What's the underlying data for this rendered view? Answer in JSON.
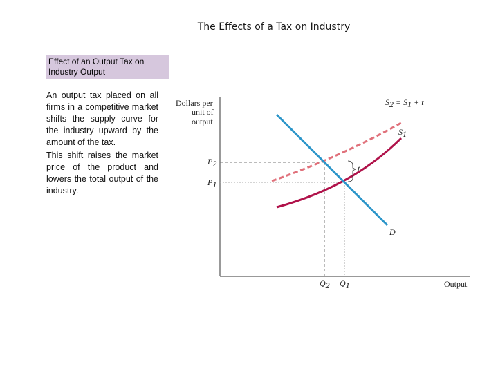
{
  "slide": {
    "title": "The Effects of a Tax on Industry"
  },
  "heading": {
    "text": "Effect of an Output Tax on Industry Output"
  },
  "body": {
    "paragraph_1": "An output tax placed on all firms in a competitive market shifts the supply curve for the industry upward by the amount of the tax.",
    "paragraph_2": "This shift raises the market price of the product and lowers the total output of the industry."
  },
  "diagram": {
    "y_axis_label_lines": [
      "Dollars per",
      "unit of",
      "output"
    ],
    "x_axis_label": "Output",
    "price_labels": [
      {
        "base": "P",
        "sub": "2"
      },
      {
        "base": "P",
        "sub": "1"
      }
    ],
    "quantity_labels": [
      {
        "base": "Q",
        "sub": "2"
      },
      {
        "base": "Q",
        "sub": "1"
      }
    ],
    "curve_labels": {
      "shifted_supply": {
        "base": "S",
        "sub": "2",
        "rest": " = S",
        "sub2": "1",
        "tail": " + t"
      },
      "original_supply": {
        "base": "S",
        "sub": "1"
      },
      "demand": "D",
      "tax": "t"
    },
    "colors": {
      "demand": "#2b95c9",
      "original_supply": "#b0124a",
      "shifted_supply": "#e0707a",
      "axis": "#333333",
      "guides": "#777777"
    }
  }
}
